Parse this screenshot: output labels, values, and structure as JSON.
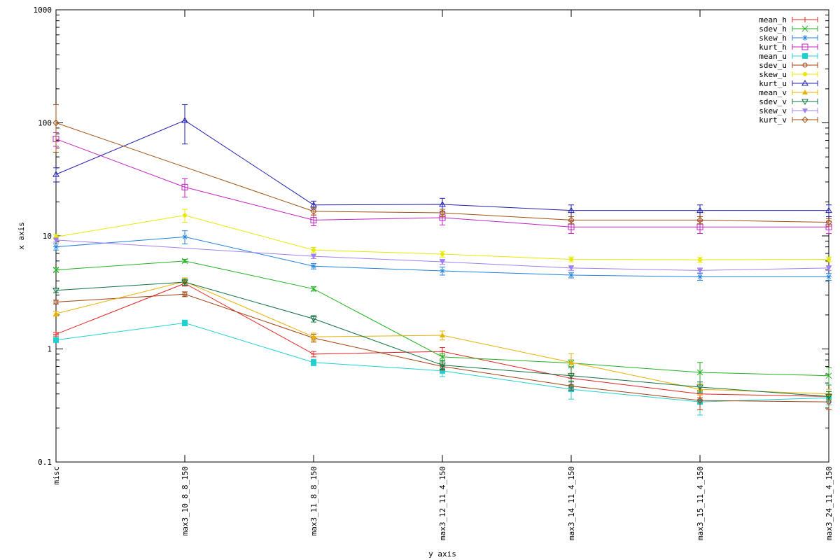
{
  "chart_data": {
    "type": "line",
    "xlabel": "y axis",
    "ylabel": "x axis",
    "yscale": "log",
    "ylim": [
      0.1,
      1000
    ],
    "y_ticks": [
      {
        "value": 0.1,
        "label": "0.1"
      },
      {
        "value": 1,
        "label": "1"
      },
      {
        "value": 10,
        "label": "10"
      },
      {
        "value": 100,
        "label": "100"
      },
      {
        "value": 1000,
        "label": "1000"
      }
    ],
    "categories": [
      "misc",
      "max3_10_8_8_150",
      "max3_11_8_8_150",
      "max3_12_11_4_150",
      "max3_14_11_4_150",
      "max3_15_11_4_150",
      "max3_24_11_4_150"
    ],
    "grid": false,
    "legend_position": "top-right",
    "series": [
      {
        "name": "mean_h",
        "color": "#e02020",
        "marker": "plus",
        "values": [
          1.35,
          3.8,
          0.9,
          0.95,
          0.55,
          0.4,
          0.38
        ],
        "errors": [
          0.05,
          0.2,
          0.05,
          0.08,
          0.03,
          0.03,
          0.02
        ]
      },
      {
        "name": "sdev_h",
        "color": "#20b020",
        "marker": "x",
        "values": [
          5.0,
          6.0,
          3.4,
          0.85,
          0.75,
          0.62,
          0.58
        ],
        "errors": [
          0.2,
          0.2,
          0.15,
          0.06,
          0.05,
          0.14,
          0.1
        ]
      },
      {
        "name": "skew_h",
        "color": "#2080e0",
        "marker": "asterisk",
        "values": [
          8.0,
          9.8,
          5.4,
          4.9,
          4.5,
          4.35,
          4.35
        ],
        "errors": [
          0.5,
          1.3,
          0.3,
          0.4,
          0.25,
          0.3,
          0.3
        ]
      },
      {
        "name": "kurt_h",
        "color": "#c020c0",
        "marker": "square",
        "values": [
          72,
          27,
          13.8,
          14.5,
          12,
          12,
          12
        ],
        "errors": [
          10,
          5,
          1.5,
          2,
          1.5,
          1.5,
          1.5
        ]
      },
      {
        "name": "mean_u",
        "color": "#20d0d0",
        "marker": "filled-square",
        "values": [
          1.2,
          1.7,
          0.76,
          0.64,
          0.44,
          0.34,
          0.37
        ],
        "errors": [
          0.06,
          0.1,
          0.05,
          0.07,
          0.08,
          0.08,
          0.05
        ]
      },
      {
        "name": "sdev_u",
        "color": "#a04010",
        "marker": "circle",
        "values": [
          2.6,
          3.05,
          1.25,
          0.7,
          0.47,
          0.35,
          0.34
        ],
        "errors": [
          0.1,
          0.15,
          0.1,
          0.05,
          0.04,
          0.06,
          0.05
        ]
      },
      {
        "name": "skew_u",
        "color": "#e8e800",
        "marker": "filled-circle",
        "values": [
          9.8,
          15.2,
          7.5,
          6.9,
          6.2,
          6.15,
          6.2
        ],
        "errors": [
          0.5,
          2.0,
          0.4,
          0.4,
          0.3,
          0.3,
          0.3
        ]
      },
      {
        "name": "kurt_u",
        "color": "#2020b0",
        "marker": "triangle",
        "values": [
          35,
          105,
          18.8,
          19,
          16.8,
          16.8,
          16.8
        ],
        "errors": [
          5,
          40,
          1.5,
          2.5,
          2,
          2,
          2
        ]
      },
      {
        "name": "mean_v",
        "color": "#e8b000",
        "marker": "filled-triangle",
        "values": [
          2.05,
          3.95,
          1.28,
          1.32,
          0.76,
          0.44,
          0.4
        ],
        "errors": [
          0.1,
          0.3,
          0.1,
          0.12,
          0.15,
          0.05,
          0.04
        ]
      },
      {
        "name": "sdev_v",
        "color": "#107040",
        "marker": "inverted-triangle",
        "values": [
          3.3,
          3.9,
          1.85,
          0.72,
          0.58,
          0.46,
          0.38
        ],
        "errors": [
          0.15,
          0.25,
          0.12,
          0.06,
          0.1,
          0.05,
          0.04
        ]
      },
      {
        "name": "skew_v",
        "color": "#a080f0",
        "marker": "filled-inverted-triangle",
        "values": [
          9.2,
          null,
          6.6,
          5.9,
          5.2,
          4.95,
          5.2
        ],
        "errors": [
          0.4,
          null,
          0.3,
          0.3,
          0.25,
          0.25,
          0.25
        ]
      },
      {
        "name": "kurt_v",
        "color": "#a05010",
        "marker": "diamond",
        "values": [
          100,
          null,
          16.5,
          16,
          13.8,
          13.8,
          13.2
        ],
        "errors": [
          45,
          null,
          1.2,
          1.2,
          1,
          1,
          1
        ]
      }
    ]
  }
}
